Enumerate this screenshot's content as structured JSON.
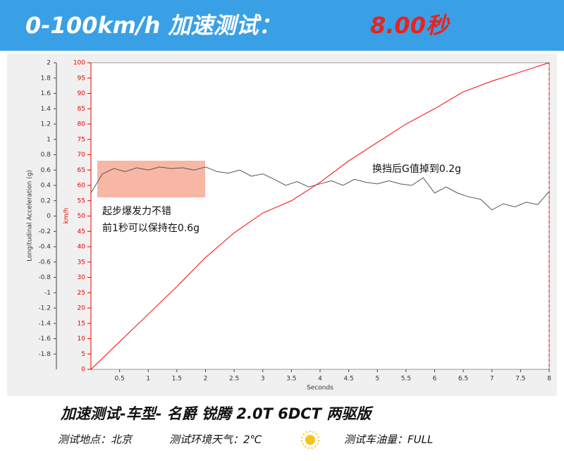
{
  "header": {
    "title": "0-100km/h 加速测试：",
    "result": "8.00秒"
  },
  "chart_data": {
    "type": "line",
    "ylabel": "Longitudinal Acceleration (g)",
    "y2label": "km/h",
    "xlabel": "Seconds",
    "xlim": [
      0,
      8
    ],
    "xticks": [
      0.5,
      1,
      1.5,
      2,
      2.5,
      3,
      3.5,
      4,
      4.5,
      5,
      5.5,
      6,
      6.5,
      7,
      7.5,
      8
    ],
    "ylim": [
      -2,
      2
    ],
    "yticks": [
      -1.8,
      -1.6,
      -1.4,
      -1.2,
      -1,
      -0.8,
      -0.6,
      -0.4,
      -0.2,
      0,
      0.2,
      0.4,
      0.6,
      0.8,
      1,
      1.2,
      1.4,
      1.6,
      1.8,
      2
    ],
    "y2lim": [
      0,
      100
    ],
    "y2ticks": [
      0,
      5,
      10,
      15,
      20,
      25,
      30,
      35,
      40,
      45,
      50,
      55,
      60,
      65,
      70,
      75,
      80,
      85,
      90,
      95,
      100
    ],
    "series": [
      {
        "color": "#555555",
        "x": [
          0,
          0.2,
          0.4,
          0.6,
          0.8,
          1,
          1.2,
          1.4,
          1.6,
          1.8,
          2,
          2.2,
          2.4,
          2.6,
          2.8,
          3,
          3.2,
          3.4,
          3.6,
          3.8,
          4,
          4.2,
          4.4,
          4.6,
          4.8,
          5,
          5.2,
          5.4,
          5.6,
          5.8,
          6,
          6.2,
          6.4,
          6.6,
          6.8,
          7,
          7.2,
          7.4,
          7.6,
          7.8,
          8
        ],
        "values": [
          0.3,
          0.55,
          0.62,
          0.58,
          0.63,
          0.6,
          0.64,
          0.62,
          0.63,
          0.6,
          0.64,
          0.58,
          0.56,
          0.6,
          0.52,
          0.55,
          0.48,
          0.4,
          0.45,
          0.38,
          0.42,
          0.46,
          0.4,
          0.48,
          0.44,
          0.42,
          0.46,
          0.42,
          0.4,
          0.5,
          0.3,
          0.38,
          0.3,
          0.25,
          0.22,
          0.08,
          0.16,
          0.12,
          0.18,
          0.15,
          0.32
        ]
      },
      {
        "color": "#ff0000",
        "axis": "y2",
        "x": [
          0,
          0.5,
          1,
          1.5,
          2,
          2.5,
          3,
          3.5,
          4,
          4.5,
          5,
          5.5,
          6,
          6.5,
          7,
          7.5,
          8
        ],
        "values": [
          0,
          9,
          18,
          27,
          36.5,
          44.5,
          51,
          55,
          61,
          68,
          74,
          80,
          85,
          90.5,
          94,
          97,
          100
        ]
      }
    ],
    "annotations": [
      "起步爆发力不错",
      "前1秒可以保持在0.6g",
      "换挡后G值掉到0.2g"
    ]
  },
  "footer": {
    "model": "加速测试-车型- 名爵 锐腾 2.0T 6DCT 两驱版",
    "location": "测试地点：北京",
    "weather": "测试环境天气：2℃",
    "fuel": "测试车油量：FULL"
  }
}
